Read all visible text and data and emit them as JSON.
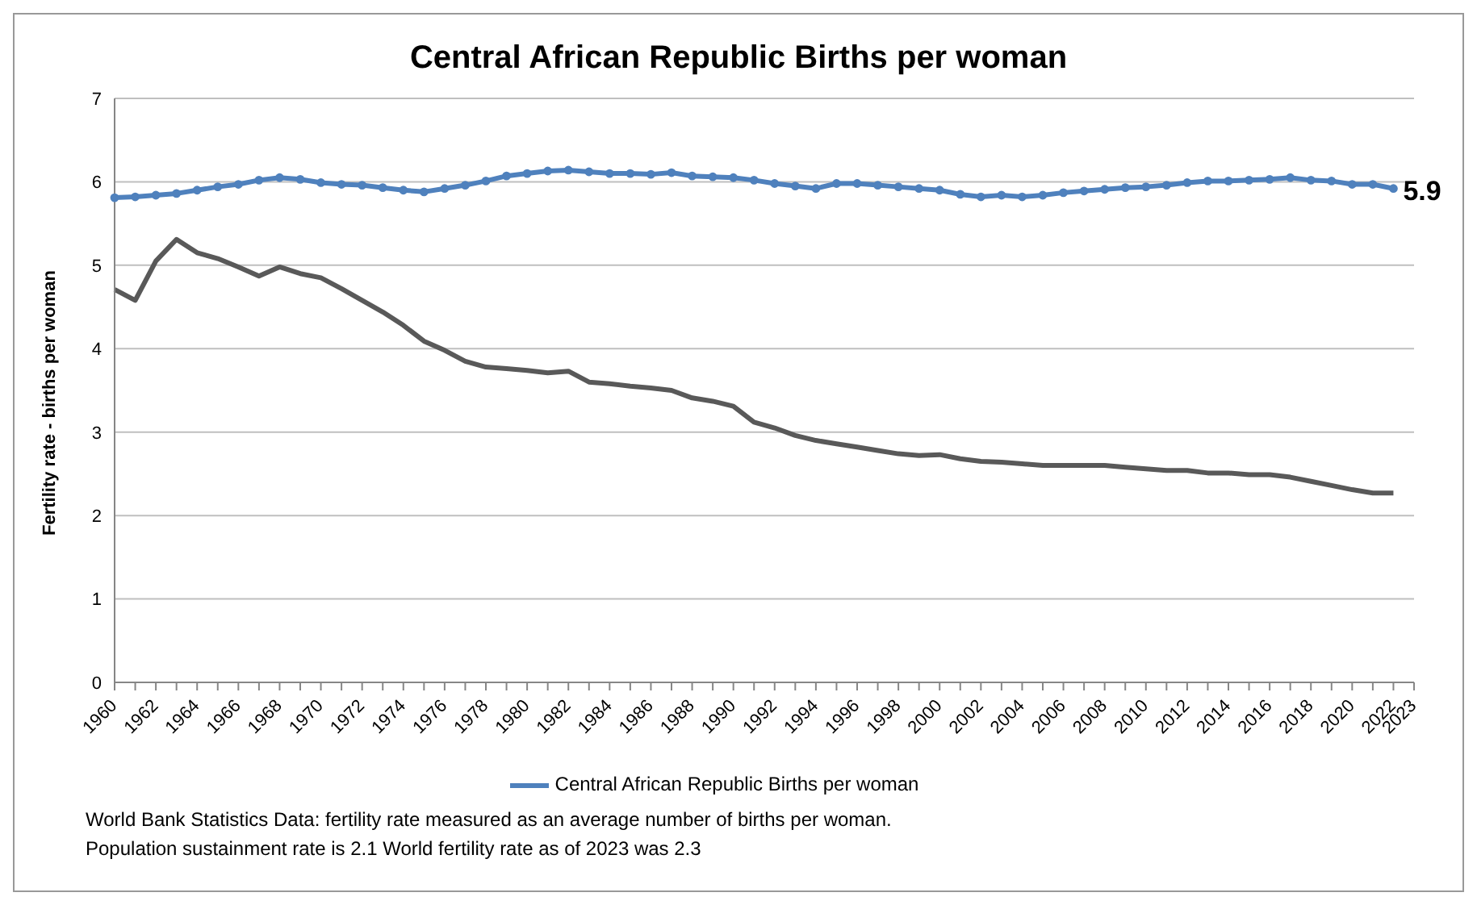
{
  "chart_data": {
    "type": "line",
    "title": "Central African Republic Births per woman",
    "ylabel": "Fertility rate  - births per woman",
    "categories": [
      "1960",
      null,
      "1962",
      null,
      "1964",
      null,
      "1966",
      null,
      "1968",
      null,
      "1970",
      null,
      "1972",
      null,
      "1974",
      null,
      "1976",
      null,
      "1978",
      null,
      "1980",
      null,
      "1982",
      null,
      "1984",
      null,
      "1986",
      null,
      "1988",
      null,
      "1990",
      null,
      "1992",
      null,
      "1994",
      null,
      "1996",
      null,
      "1998",
      null,
      "2000",
      null,
      "2002",
      null,
      "2004",
      null,
      "2006",
      null,
      "2008",
      null,
      "2010",
      null,
      "2012",
      null,
      "2014",
      null,
      "2016",
      null,
      "2018",
      null,
      "2020",
      null,
      "2022",
      "2023"
    ],
    "series": [
      {
        "name": "Central African Republic Births per woman",
        "color": "#4f81bd",
        "marker": "circle",
        "values": [
          5.81,
          5.82,
          5.84,
          5.86,
          5.9,
          5.94,
          5.97,
          6.02,
          6.05,
          6.03,
          5.99,
          5.97,
          5.96,
          5.93,
          5.9,
          5.88,
          5.92,
          5.96,
          6.01,
          6.07,
          6.1,
          6.13,
          6.14,
          6.12,
          6.1,
          6.1,
          6.09,
          6.11,
          6.07,
          6.06,
          6.05,
          6.02,
          5.98,
          5.95,
          5.92,
          5.98,
          5.98,
          5.96,
          5.94,
          5.92,
          5.9,
          5.85,
          5.82,
          5.84,
          5.82,
          5.84,
          5.87,
          5.89,
          5.91,
          5.93,
          5.94,
          5.96,
          5.99,
          6.01,
          6.01,
          6.02,
          6.03,
          6.05,
          6.02,
          6.01,
          5.97,
          5.97,
          5.92,
          null
        ],
        "value_labels": [
          null,
          null,
          null,
          null,
          null,
          null,
          null,
          null,
          null,
          null,
          null,
          null,
          null,
          null,
          null,
          null,
          null,
          null,
          null,
          null,
          null,
          null,
          null,
          null,
          null,
          null,
          null,
          null,
          null,
          null,
          null,
          null,
          null,
          null,
          null,
          null,
          null,
          null,
          null,
          null,
          null,
          null,
          null,
          null,
          null,
          null,
          null,
          null,
          null,
          null,
          null,
          null,
          null,
          null,
          null,
          null,
          null,
          null,
          null,
          null,
          null,
          null,
          "5.9",
          null
        ]
      },
      {
        "color": "#595959",
        "marker": "none",
        "values": [
          4.71,
          4.58,
          5.05,
          5.31,
          5.15,
          5.08,
          4.98,
          4.87,
          4.98,
          4.9,
          4.85,
          4.72,
          4.58,
          4.44,
          4.28,
          4.09,
          3.98,
          3.85,
          3.78,
          3.76,
          3.74,
          3.71,
          3.73,
          3.6,
          3.58,
          3.55,
          3.53,
          3.5,
          3.41,
          3.37,
          3.31,
          3.12,
          3.05,
          2.96,
          2.9,
          2.86,
          2.82,
          2.78,
          2.74,
          2.72,
          2.73,
          2.68,
          2.65,
          2.64,
          2.62,
          2.6,
          2.6,
          2.6,
          2.6,
          2.58,
          2.56,
          2.54,
          2.54,
          2.51,
          2.51,
          2.49,
          2.49,
          2.46,
          2.41,
          2.36,
          2.31,
          2.27,
          2.27,
          null
        ]
      }
    ],
    "ylim": [
      0,
      7
    ],
    "yticks": [
      0,
      1,
      2,
      3,
      4,
      5,
      6,
      7
    ],
    "grid": "y",
    "legend": "bottom",
    "line_style": "solid",
    "annotations": [
      "World Bank Statistics Data: fertility rate measured as an average number of births per woman.",
      "Population sustainment rate is 2.1   World fertility rate as of 2023 was 2.3"
    ]
  }
}
